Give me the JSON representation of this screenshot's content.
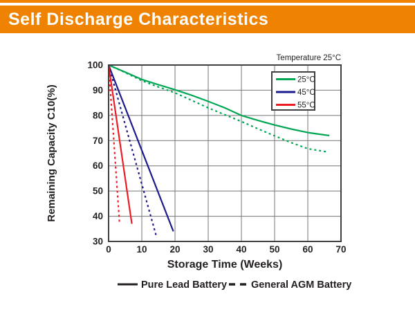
{
  "header": {
    "title": "Self Discharge Characteristics",
    "accent_color": "#EF8200"
  },
  "chart_data": {
    "type": "line",
    "temperature_note": "Temperature 25°C",
    "xlabel": "Storage Time (Weeks)",
    "ylabel": "Remaining Capacity C10(%)",
    "xlim": [
      0,
      70
    ],
    "ylim": [
      30,
      100
    ],
    "x_ticks": [
      0,
      10,
      20,
      30,
      40,
      50,
      60,
      70
    ],
    "y_ticks": [
      30,
      40,
      50,
      60,
      70,
      80,
      90,
      100
    ],
    "grid": true,
    "legend_position": "top-right-inside",
    "temperature_legend": [
      {
        "label": "25°C",
        "color": "#00A651"
      },
      {
        "label": "45°C",
        "color": "#1A1A8C"
      },
      {
        "label": "55°C",
        "color": "#EC1C24"
      }
    ],
    "style_legend": [
      {
        "label": "Pure Lead Battery",
        "style": "solid"
      },
      {
        "label": "General AGM Battery",
        "style": "dashed"
      }
    ],
    "series": [
      {
        "name": "25C-pure-lead",
        "temperature": "25°C",
        "battery": "Pure Lead Battery",
        "style": "solid",
        "color": "#00A651",
        "points": [
          [
            0,
            100
          ],
          [
            5,
            97.2
          ],
          [
            10,
            94.3
          ],
          [
            15,
            92.2
          ],
          [
            20,
            90.2
          ],
          [
            25,
            88.0
          ],
          [
            30,
            85.6
          ],
          [
            35,
            83.0
          ],
          [
            40,
            80.0
          ],
          [
            45,
            78.0
          ],
          [
            50,
            76.2
          ],
          [
            55,
            74.6
          ],
          [
            60,
            73.2
          ],
          [
            66.5,
            72.0
          ]
        ]
      },
      {
        "name": "25C-general-agm",
        "temperature": "25°C",
        "battery": "General AGM Battery",
        "style": "dashed",
        "color": "#00A651",
        "points": [
          [
            0,
            100
          ],
          [
            5,
            97.0
          ],
          [
            10,
            93.8
          ],
          [
            15,
            91.3
          ],
          [
            20,
            89.0
          ],
          [
            25,
            86.0
          ],
          [
            30,
            83.0
          ],
          [
            35,
            80.3
          ],
          [
            40,
            77.6
          ],
          [
            45,
            74.7
          ],
          [
            50,
            71.9
          ],
          [
            55,
            69.2
          ],
          [
            60,
            66.8
          ],
          [
            66,
            65.5
          ]
        ]
      },
      {
        "name": "45C-pure-lead",
        "temperature": "45°C",
        "battery": "Pure Lead Battery",
        "style": "solid",
        "color": "#1A1A8C",
        "points": [
          [
            0,
            100
          ],
          [
            19.5,
            34
          ]
        ]
      },
      {
        "name": "45C-general-agm",
        "temperature": "45°C",
        "battery": "General AGM Battery",
        "style": "dashed",
        "color": "#1A1A8C",
        "points": [
          [
            0,
            100
          ],
          [
            14.5,
            31.5
          ]
        ]
      },
      {
        "name": "55C-pure-lead",
        "temperature": "55°C",
        "battery": "Pure Lead Battery",
        "style": "solid",
        "color": "#EC1C24",
        "points": [
          [
            0,
            100
          ],
          [
            7,
            37
          ]
        ]
      },
      {
        "name": "55C-general-agm",
        "temperature": "55°C",
        "battery": "General AGM Battery",
        "style": "dashed",
        "color": "#EC1C24",
        "points": [
          [
            0,
            100
          ],
          [
            3.3,
            37.3
          ]
        ]
      }
    ],
    "colors": {
      "grid": "#757575",
      "frame": "#3F3F3F",
      "text": "#231F20",
      "background": "#FFFFFF"
    }
  }
}
